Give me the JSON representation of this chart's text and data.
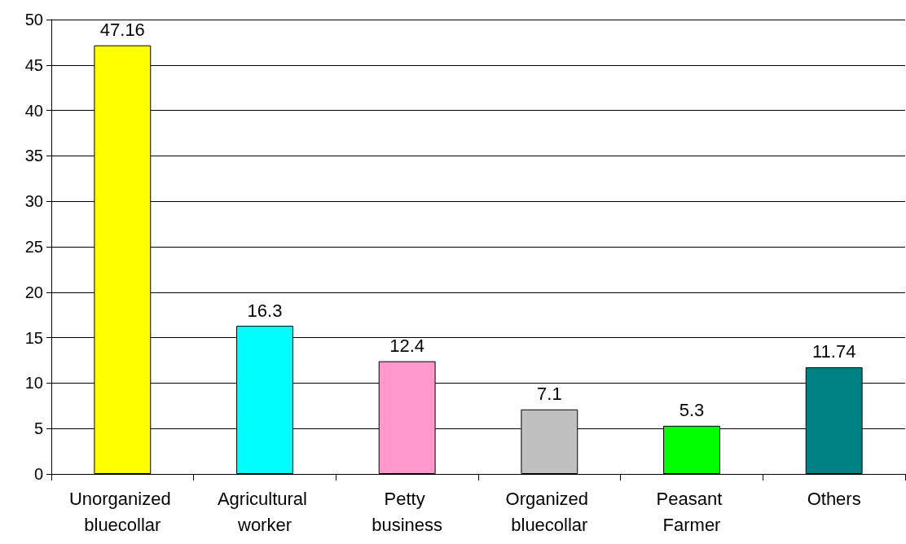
{
  "chart_data": {
    "type": "bar",
    "categories": [
      "Unorganized bluecollar",
      "Agricultural worker",
      "Petty business",
      "Organized bluecollar",
      "Peasant Farmer",
      "Others"
    ],
    "values": [
      47.16,
      16.3,
      12.4,
      7.1,
      5.3,
      11.74
    ],
    "colors": [
      "#ffff00",
      "#00ffff",
      "#ff99cc",
      "#c0c0c0",
      "#00ff00",
      "#008080"
    ],
    "ylim": [
      0,
      50
    ],
    "yticks": [
      0,
      5,
      10,
      15,
      20,
      25,
      30,
      35,
      40,
      45,
      50
    ],
    "grid": "y",
    "data_labels": true
  }
}
